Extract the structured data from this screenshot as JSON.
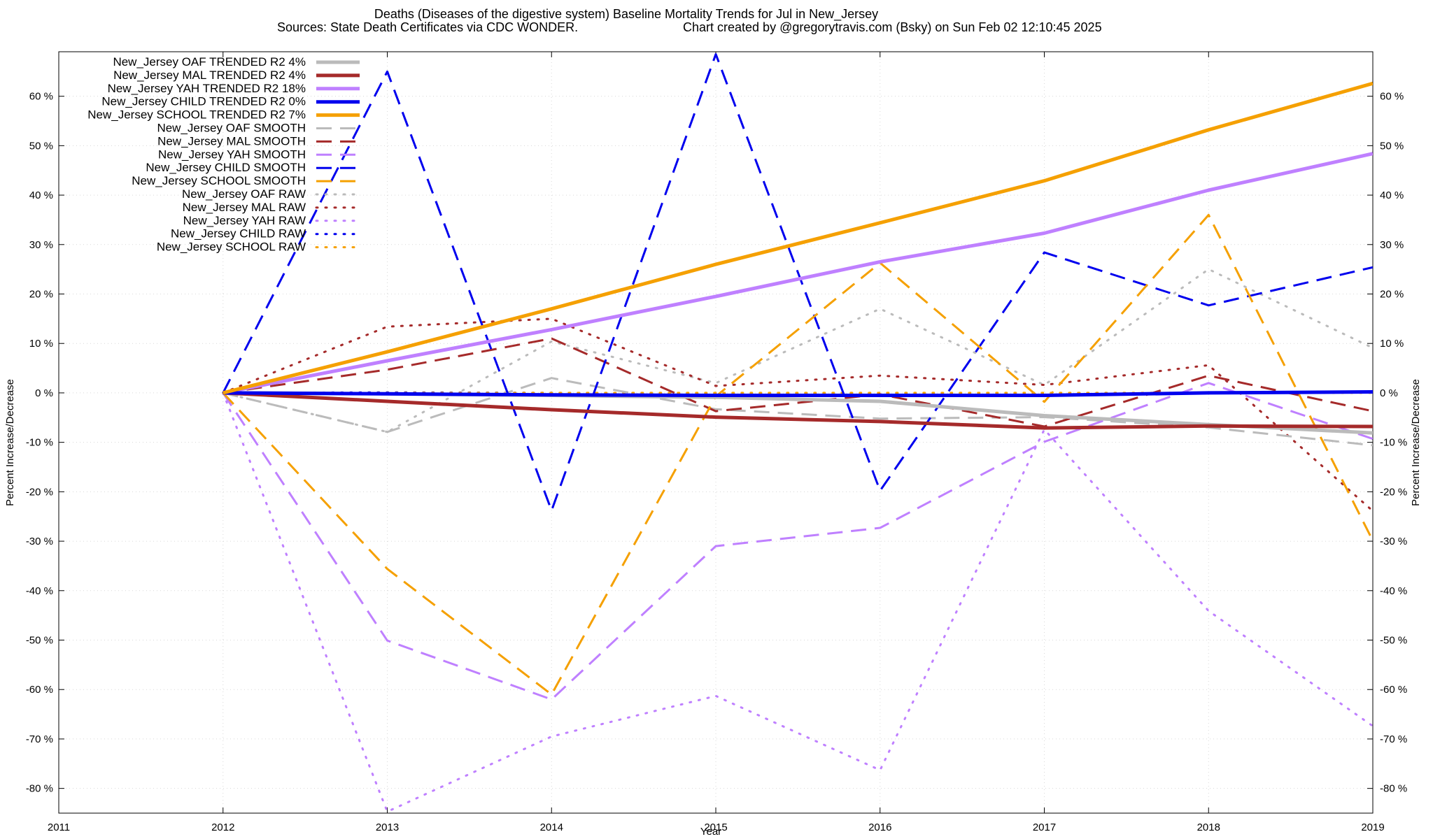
{
  "chart_data": {
    "type": "line",
    "title_line1": "Deaths (Diseases of the digestive system)  Baseline Mortality Trends for Jul in New_Jersey",
    "title_line2_left": "Sources: State Death Certificates via CDC WONDER.",
    "title_line2_right": "Chart created by @gregorytravis.com (Bsky) on Sun Feb 02 12:10:45 2025",
    "xlabel": "Year",
    "ylabel_left": "Percent Increase/Decrease",
    "ylabel_right": "Percent Increase/Decrease",
    "xlim": [
      2011,
      2019
    ],
    "ylim": [
      -85,
      69
    ],
    "x_ticks": [
      "2011",
      "2012",
      "2013",
      "2014",
      "2015",
      "2016",
      "2017",
      "2018",
      "2019"
    ],
    "y_ticks_left": [
      "60 %",
      "50 %",
      "40 %",
      "30 %",
      "20 %",
      "10 %",
      "0 %",
      "-10 %",
      "-20 %",
      "-30 %",
      "-40 %",
      "-50 %",
      "-60 %",
      "-70 %",
      "-80 %"
    ],
    "y_ticks_right": [
      "60 %",
      "50 %",
      "40 %",
      "30 %",
      "20 %",
      "10 %",
      "0 %",
      "-10 %",
      "-20 %",
      "-30 %",
      "-40 %",
      "-50 %",
      "-60 %",
      "-70 %",
      "-80 %"
    ],
    "grid": true,
    "legend_position": "top-left",
    "x": [
      2012,
      2013,
      2014,
      2015,
      2016,
      2017,
      2018,
      2019
    ],
    "series": [
      {
        "name": "New_Jersey OAF TRENDED R2   4%",
        "color": "#bbbbbb",
        "style": "solid",
        "values": [
          0,
          -0.2,
          -0.5,
          -0.9,
          -1.7,
          -4.6,
          -6.4,
          -8.1
        ]
      },
      {
        "name": "New_Jersey MAL TRENDED R2   4%",
        "color": "#a52a2a",
        "style": "solid",
        "values": [
          0,
          -1.7,
          -3.4,
          -4.9,
          -5.8,
          -7.1,
          -6.7,
          -6.8
        ]
      },
      {
        "name": "New_Jersey YAH TRENDED R2  18%",
        "color": "#bf80ff",
        "style": "solid",
        "values": [
          0,
          6.5,
          12.8,
          19.5,
          26.5,
          32.3,
          41.0,
          48.4
        ]
      },
      {
        "name": "New_Jersey CHILD TRENDED R2   0%",
        "color": "#0000ee",
        "style": "solid",
        "values": [
          0,
          -0.2,
          -0.4,
          -0.5,
          -0.5,
          -0.5,
          0.0,
          0.2
        ]
      },
      {
        "name": "New_Jersey SCHOOL TRENDED R2   7%",
        "color": "#f5a000",
        "style": "solid",
        "values": [
          0,
          8.3,
          17.0,
          26.0,
          34.4,
          42.9,
          53.2,
          62.6
        ]
      },
      {
        "name": "New_Jersey OAF SMOOTH",
        "color": "#bbbbbb",
        "style": "dashed",
        "values": [
          0,
          -7.9,
          3.0,
          -3.3,
          -5.2,
          -4.9,
          -7.0,
          -10.6
        ]
      },
      {
        "name": "New_Jersey MAL SMOOTH",
        "color": "#a52a2a",
        "style": "dashed",
        "values": [
          0,
          4.7,
          11.0,
          -3.7,
          -0.3,
          -6.8,
          3.5,
          -3.7
        ]
      },
      {
        "name": "New_Jersey YAH SMOOTH",
        "color": "#bf80ff",
        "style": "dashed",
        "values": [
          0,
          -50.1,
          -62.0,
          -31.0,
          -27.3,
          -9.9,
          2.0,
          -9.3
        ]
      },
      {
        "name": "New_Jersey CHILD SMOOTH",
        "color": "#0000ee",
        "style": "dashed",
        "values": [
          0,
          65.0,
          -23.8,
          68.5,
          -19.8,
          28.4,
          17.7,
          25.4
        ]
      },
      {
        "name": "New_Jersey SCHOOL SMOOTH",
        "color": "#f5a000",
        "style": "dashed",
        "values": [
          0,
          -35.6,
          -61.0,
          -0.7,
          26.3,
          -1.8,
          36.0,
          -29.9
        ]
      },
      {
        "name": "New_Jersey OAF RAW",
        "color": "#bbbbbb",
        "style": "dotted",
        "values": [
          0,
          -7.9,
          10.4,
          2.0,
          17.0,
          1.6,
          25.0,
          9.1
        ]
      },
      {
        "name": "New_Jersey MAL RAW",
        "color": "#a52a2a",
        "style": "dotted",
        "values": [
          0,
          13.4,
          15.0,
          1.4,
          3.5,
          1.6,
          5.6,
          -23.9
        ]
      },
      {
        "name": "New_Jersey YAH RAW",
        "color": "#bf80ff",
        "style": "dotted",
        "values": [
          0,
          -84.7,
          -69.5,
          -61.3,
          -76.3,
          -7.4,
          -44.1,
          -67.4
        ]
      },
      {
        "name": "New_Jersey CHILD RAW",
        "color": "#0000ee",
        "style": "dotted",
        "values": [
          0,
          0.1,
          0.0,
          -0.2,
          -0.2,
          -0.3,
          0.0,
          0.1
        ]
      },
      {
        "name": "New_Jersey SCHOOL RAW",
        "color": "#f5a000",
        "style": "dotted",
        "values": [
          0,
          0.0,
          0.0,
          0.0,
          0.0,
          0.0,
          0.0,
          0.0
        ]
      }
    ]
  }
}
